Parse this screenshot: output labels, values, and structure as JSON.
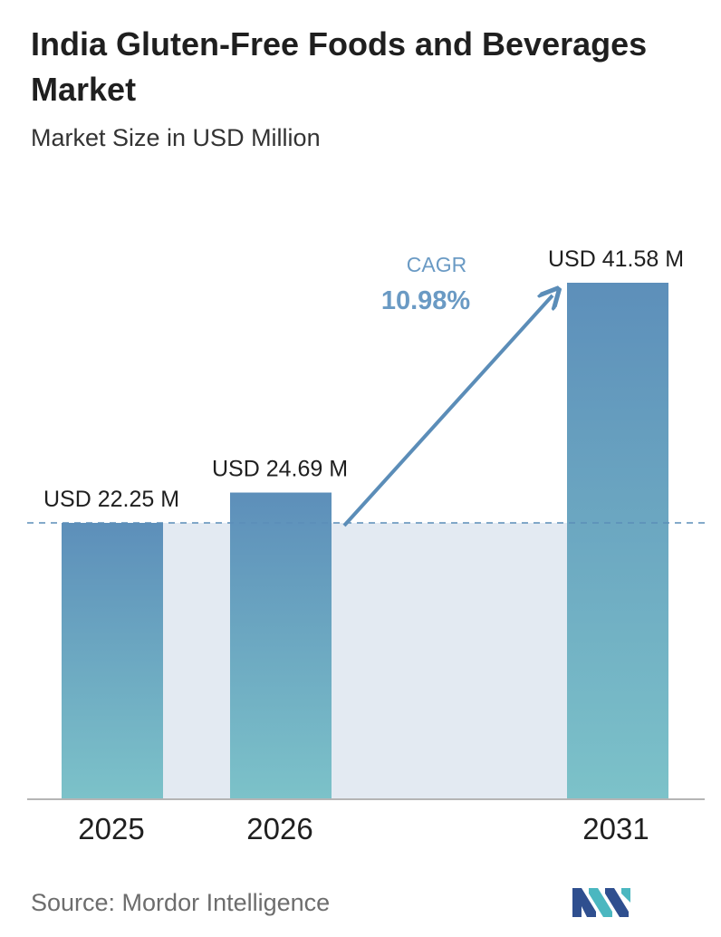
{
  "header": {
    "title": "India Gluten-Free Foods and Beverages Market",
    "subtitle": "Market Size in USD Million"
  },
  "chart_data": {
    "type": "bar",
    "categories": [
      "2025",
      "2026",
      "2031"
    ],
    "values": [
      22.25,
      24.69,
      41.58
    ],
    "value_labels": [
      "USD 22.25 M",
      "USD 24.69 M",
      "USD 41.58 M"
    ],
    "cagr_label": "CAGR",
    "cagr_value": "10.98%",
    "baseline_value": 22.25,
    "ylim": [
      0,
      41.58
    ],
    "grid": false,
    "legend": "none",
    "colors": {
      "bar_top": "#5d8fba",
      "bar_bottom": "#7cc2c9",
      "shade": "#e3eaf2",
      "arrow": "#5b8db8",
      "cagr_text": "#6a9ac4",
      "axis": "#b5b5b5"
    }
  },
  "footer": {
    "source": "Source:  Mordor Intelligence",
    "logo_colors": [
      "#2f4f8f",
      "#4bb7c0"
    ]
  }
}
